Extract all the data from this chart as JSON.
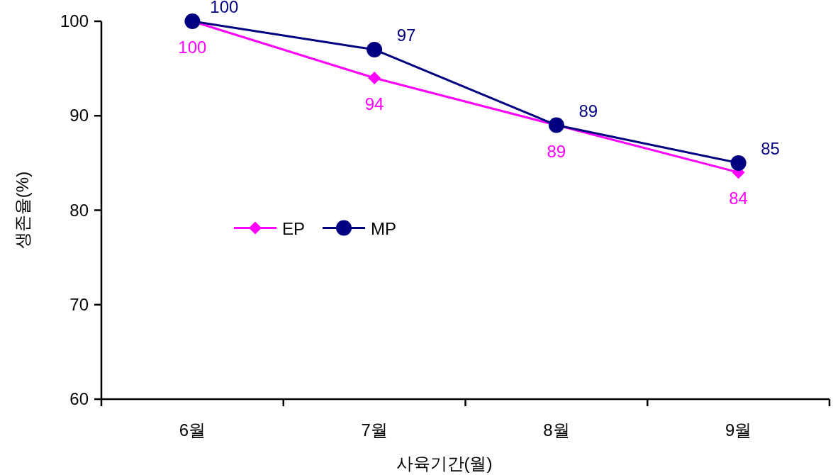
{
  "chart_data": {
    "type": "line",
    "xlabel": "사육기간(월)",
    "ylabel": "생존율(%)",
    "categories": [
      "6월",
      "7월",
      "8월",
      "9월"
    ],
    "series": [
      {
        "name": "EP",
        "color": "#ff00ff",
        "marker": "diamond",
        "values": [
          100,
          94,
          89,
          84
        ]
      },
      {
        "name": "MP",
        "color": "#000080",
        "marker": "circle",
        "values": [
          100,
          97,
          89,
          85
        ]
      }
    ],
    "ylim": [
      60,
      100
    ],
    "yticks": [
      60,
      70,
      80,
      90,
      100
    ],
    "grid": false,
    "legend": "left",
    "data_labels": true,
    "line_style": "solid"
  }
}
